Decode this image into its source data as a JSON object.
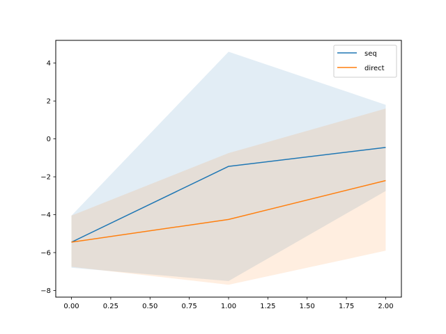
{
  "chart_data": {
    "type": "line",
    "title": "",
    "xlabel": "",
    "ylabel": "",
    "x": [
      0.0,
      1.0,
      2.0
    ],
    "xlim": [
      -0.1,
      2.1
    ],
    "ylim": [
      -8.35,
      5.2
    ],
    "xticks": [
      0.0,
      0.25,
      0.5,
      0.75,
      1.0,
      1.25,
      1.5,
      1.75,
      2.0
    ],
    "xtick_labels": [
      "0.00",
      "0.25",
      "0.50",
      "0.75",
      "1.00",
      "1.25",
      "1.50",
      "1.75",
      "2.00"
    ],
    "yticks": [
      -8,
      -6,
      -4,
      -2,
      0,
      2,
      4
    ],
    "ytick_labels": [
      "−8",
      "−6",
      "−4",
      "−2",
      "0",
      "2",
      "4"
    ],
    "grid": false,
    "legend_position": "top-right",
    "series": [
      {
        "name": "seq",
        "color": "#1f77b4",
        "values": [
          -5.45,
          -1.45,
          -0.45
        ],
        "band_upper": [
          -4.05,
          4.6,
          1.8
        ],
        "band_lower": [
          -6.8,
          -7.5,
          -2.75
        ]
      },
      {
        "name": "direct",
        "color": "#ff7f0e",
        "values": [
          -5.45,
          -4.25,
          -2.2
        ],
        "band_upper": [
          -4.05,
          -0.75,
          1.6
        ],
        "band_lower": [
          -6.75,
          -7.7,
          -5.9
        ]
      }
    ]
  }
}
